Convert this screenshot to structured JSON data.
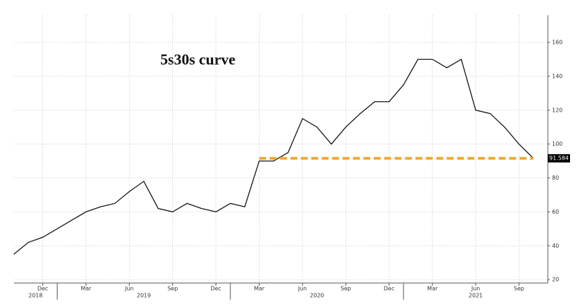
{
  "chart_data": {
    "type": "line",
    "title": "5s30s curve",
    "x": [
      "2018-10",
      "2018-11",
      "2018-12",
      "2019-01",
      "2019-02",
      "2019-03",
      "2019-04",
      "2019-05",
      "2019-06",
      "2019-07",
      "2019-08",
      "2019-09",
      "2019-10",
      "2019-11",
      "2019-12",
      "2020-01",
      "2020-02",
      "2020-03",
      "2020-04",
      "2020-05",
      "2020-06",
      "2020-07",
      "2020-08",
      "2020-09",
      "2020-10",
      "2020-11",
      "2020-12",
      "2021-01",
      "2021-02",
      "2021-03",
      "2021-04",
      "2021-05",
      "2021-06",
      "2021-07",
      "2021-08",
      "2021-09",
      "2021-10"
    ],
    "series": [
      {
        "color": "#111111",
        "values": [
          35,
          42,
          45,
          50,
          55,
          60,
          63,
          65,
          72,
          78,
          62,
          60,
          65,
          62,
          60,
          65,
          63,
          90,
          90,
          95,
          115,
          110,
          100,
          110,
          118,
          125,
          125,
          135,
          150,
          150,
          145,
          150,
          120,
          118,
          110,
          100,
          91.584
        ]
      }
    ],
    "xlim": [
      "2018-10",
      "2021-11"
    ],
    "xticks": [
      {
        "value": "2018-12",
        "label": "Dec"
      },
      {
        "value": "2019-03",
        "label": "Mar"
      },
      {
        "value": "2019-06",
        "label": "Jun"
      },
      {
        "value": "2019-09",
        "label": "Sep"
      },
      {
        "value": "2019-12",
        "label": "Dec"
      },
      {
        "value": "2020-03",
        "label": "Mar"
      },
      {
        "value": "2020-06",
        "label": "Jun"
      },
      {
        "value": "2020-09",
        "label": "Sep"
      },
      {
        "value": "2020-12",
        "label": "Dec"
      },
      {
        "value": "2021-03",
        "label": "Mar"
      },
      {
        "value": "2021-06",
        "label": "Jun"
      },
      {
        "value": "2021-09",
        "label": "Sep"
      }
    ],
    "year_labels": [
      "2018",
      "2019",
      "2020",
      "2021"
    ],
    "ylim": [
      18,
      176
    ],
    "yticks": [
      20,
      40,
      60,
      80,
      100,
      120,
      140,
      160
    ],
    "grid": true,
    "reference_line": {
      "from": "2020-03",
      "color": "#f0a830"
    }
  }
}
